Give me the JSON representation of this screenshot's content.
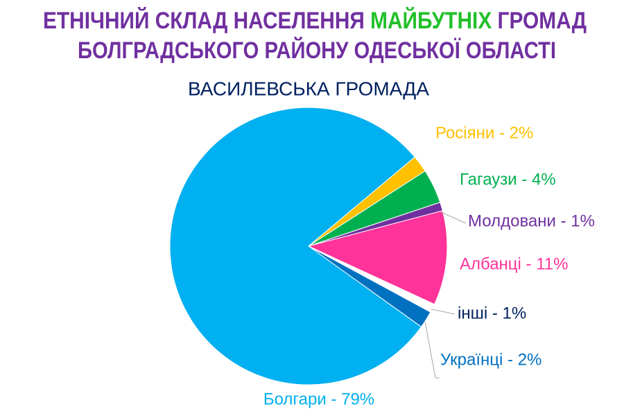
{
  "chart_data": {
    "type": "pie",
    "title": {
      "line1": [
        {
          "text": "ЕТНІЧНИЙ СКЛАД НАСЕЛЕННЯ ",
          "color": "#7030a0"
        },
        {
          "text": "МАЙБУТНІХ",
          "color": "#22c02a"
        },
        {
          "text": " ГРОМАД",
          "color": "#7030a0"
        }
      ],
      "line2": {
        "text": "БОЛГРАДСЬКОГО РАЙОНУ ОДЕСЬКОЇ ОБЛАСТІ",
        "color": "#7030a0"
      }
    },
    "subtitle": "ВАСИЛЕВСЬКА ГРОМАДА",
    "categories": [
      "Росіяни - 2%",
      "Гагаузи - 4%",
      "Молдовани - 1%",
      "Албанці - 11%",
      "інші - 1%",
      "Українці - 2%",
      "Болгари - 79%"
    ],
    "values": [
      2,
      4,
      1,
      11,
      1,
      2,
      79
    ],
    "colors": [
      "#ffc000",
      "#00b050",
      "#7030a0",
      "#ff3399",
      "#ffffff",
      "#0070c0",
      "#00b0f0"
    ],
    "label_colors": [
      "#ffc000",
      "#00b050",
      "#7030a0",
      "#ff3399",
      "#002060",
      "#0070c0",
      "#00b0f0"
    ]
  }
}
